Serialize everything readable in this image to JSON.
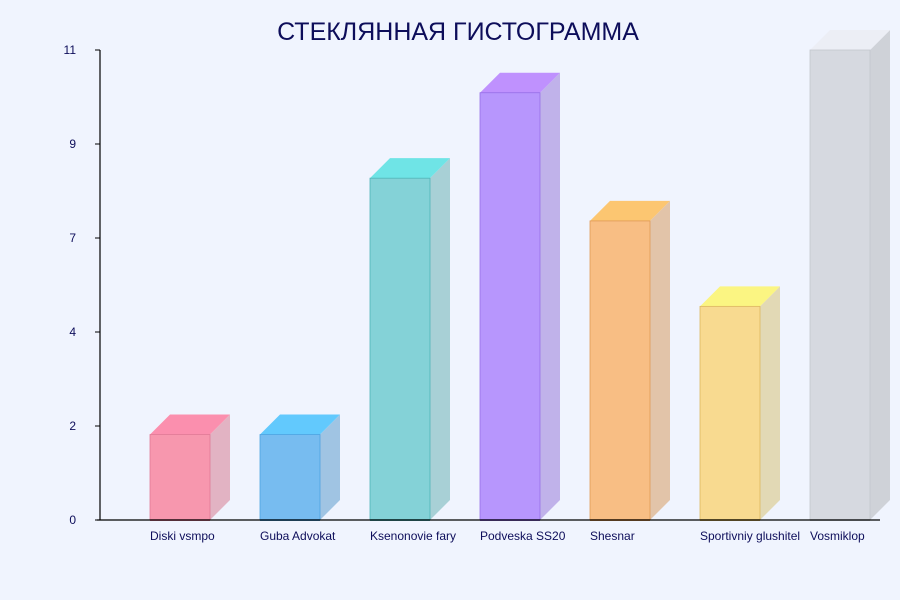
{
  "chart_data": {
    "type": "bar",
    "style": "3d-glass",
    "title": "СТЕКЛЯННАЯ ГИСТОГРАММА",
    "xlabel": "",
    "ylabel": "",
    "categories": [
      "Diski vsmpo",
      "Guba Advokat",
      "Ksenonovie fary",
      "Podveska SS20",
      "Shesnar",
      "Sportivniy glushitel",
      "Vosmiklop"
    ],
    "values": [
      2,
      2,
      8,
      10,
      7,
      5,
      11
    ],
    "ylim": [
      0,
      11
    ],
    "yticks": [
      0,
      2.2,
      4.4,
      6.6,
      8.8,
      11
    ],
    "ytick_labels": [
      "0",
      "2",
      "4",
      "7",
      "9",
      "11"
    ],
    "grid": false,
    "colors": [
      {
        "front": "#f797ae",
        "top": "#fb8fae",
        "side": "#e2b3c3",
        "edge": "#e07a96"
      },
      {
        "front": "#77bcf0",
        "top": "#62c9fd",
        "side": "#a0c4e3",
        "edge": "#4ea3e0"
      },
      {
        "front": "#84d2d7",
        "top": "#6fe4e6",
        "side": "#a8d0d6",
        "edge": "#4fb5b8"
      },
      {
        "front": "#b796fd",
        "top": "#bf91fe",
        "side": "#c0b2ea",
        "edge": "#9670e8"
      },
      {
        "front": "#f8be84",
        "top": "#fcc671",
        "side": "#e2c4a9",
        "edge": "#e09a55"
      },
      {
        "front": "#f8da90",
        "top": "#fbf582",
        "side": "#e2d9b5",
        "edge": "#dcb860"
      },
      {
        "front": "#d6d9e0",
        "top": "#eceef5",
        "side": "#cfd2d8",
        "edge": "#c2c6ce"
      }
    ]
  }
}
